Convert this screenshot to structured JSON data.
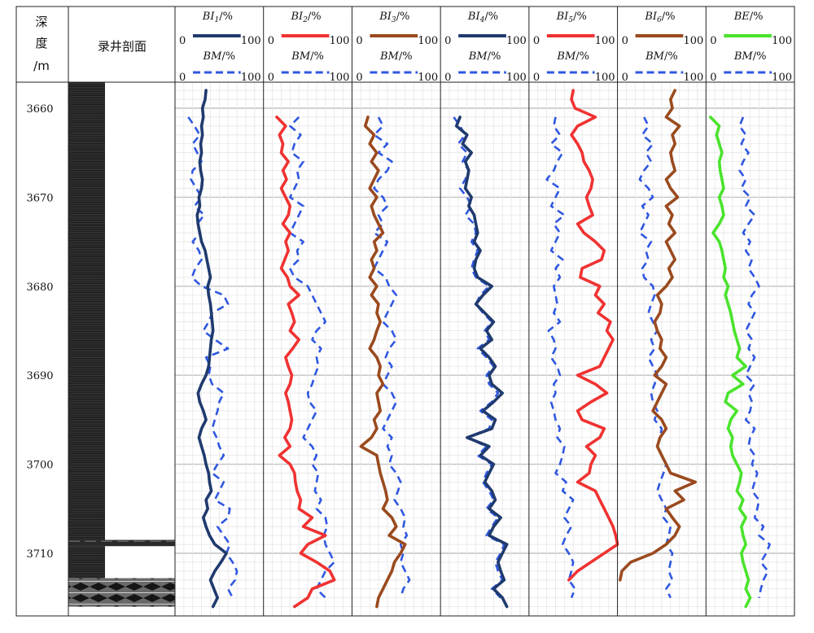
{
  "header": {
    "depth_label": [
      "深",
      "度",
      "/m"
    ],
    "section_label": "录井剖面"
  },
  "chart_data": {
    "type": "line",
    "depth_axis": {
      "unit": "m",
      "range": [
        3657,
        3716
      ],
      "ticks": [
        3660,
        3670,
        3680,
        3690,
        3700,
        3710
      ]
    },
    "lithology": [
      {
        "from": 3657,
        "to": 3708.5,
        "pattern": "dark-mudstone"
      },
      {
        "from": 3708.5,
        "to": 3709.2,
        "pattern": "thin-interbed"
      },
      {
        "from": 3709.2,
        "to": 3712.8,
        "pattern": "white-sandstone"
      },
      {
        "from": 3712.8,
        "to": 3716,
        "pattern": "nodular-limestone"
      }
    ],
    "tracks": [
      {
        "title_main": "BI",
        "title_sub": "1",
        "title_unit": "/%",
        "min_label": "0",
        "max_label": "100",
        "range": [
          0,
          100
        ],
        "color": "#1f3a6e",
        "depth_start": 3657,
        "depth_step": 1,
        "values": [
          32,
          35,
          34,
          31,
          32,
          30,
          31,
          29,
          30,
          28,
          29,
          31,
          30,
          27,
          28,
          25,
          26,
          28,
          30,
          34,
          36,
          38,
          40,
          37,
          38,
          40,
          41,
          42,
          43,
          41,
          40,
          39,
          38,
          35,
          30,
          26,
          28,
          32,
          35,
          30,
          27,
          30,
          33,
          35,
          38,
          39,
          41,
          35,
          37,
          32,
          35,
          39,
          45,
          58,
          52,
          45,
          40,
          44,
          48,
          43
        ],
        "bm_color": "#2f57e0",
        "bm_start": 3661,
        "bm_values": [
          15,
          22,
          28,
          20,
          25,
          30,
          20,
          18,
          24,
          30,
          22,
          33,
          25,
          28,
          20,
          27,
          30,
          23,
          19,
          30,
          55,
          60,
          42,
          38,
          32,
          45,
          60,
          35,
          40,
          38,
          42,
          55,
          50,
          48,
          45,
          42,
          47,
          50,
          55,
          48,
          42,
          55,
          50,
          45,
          62,
          60,
          48,
          55,
          62,
          58,
          65,
          70,
          68,
          60,
          65
        ]
      },
      {
        "title_main": "BI",
        "title_sub": "2",
        "title_unit": "/%",
        "min_label": "0",
        "max_label": "100",
        "range": [
          0,
          100
        ],
        "color": "#f03232",
        "depth_start": 3661,
        "depth_step": 1,
        "values": [
          15,
          25,
          18,
          22,
          20,
          28,
          22,
          26,
          20,
          25,
          30,
          28,
          22,
          30,
          25,
          28,
          24,
          20,
          27,
          30,
          40,
          28,
          32,
          35,
          30,
          40,
          33,
          25,
          28,
          32,
          30,
          25,
          28,
          30,
          32,
          30,
          24,
          30,
          18,
          30,
          35,
          36,
          38,
          42,
          40,
          55,
          45,
          70,
          50,
          42,
          60,
          75,
          80,
          55,
          50,
          35,
          25
        ],
        "bm_color": "#2f57e0",
        "bm_start": 3661,
        "bm_values": [
          40,
          30,
          42,
          35,
          32,
          45,
          38,
          40,
          35,
          30,
          45,
          40,
          35,
          30,
          45,
          38,
          40,
          30,
          35,
          50,
          55,
          60,
          65,
          70,
          60,
          55,
          65,
          60,
          62,
          58,
          55,
          50,
          52,
          60,
          55,
          50,
          45,
          55,
          60,
          55,
          62,
          60,
          58,
          65,
          60,
          70,
          72,
          68,
          70,
          75,
          80,
          70,
          65,
          60,
          70
        ]
      },
      {
        "title_main": "BI",
        "title_sub": "3",
        "title_unit": "/%",
        "min_label": "0",
        "max_label": "100",
        "range": [
          0,
          100
        ],
        "color": "#9a4a1e",
        "depth_start": 3661,
        "depth_step": 1,
        "values": [
          18,
          15,
          25,
          20,
          28,
          22,
          30,
          25,
          20,
          28,
          22,
          25,
          30,
          35,
          25,
          28,
          22,
          25,
          20,
          28,
          22,
          30,
          28,
          32,
          28,
          25,
          20,
          28,
          32,
          30,
          35,
          28,
          30,
          32,
          25,
          28,
          22,
          10,
          28,
          30,
          32,
          35,
          38,
          40,
          35,
          45,
          50,
          42,
          60,
          55,
          48,
          45,
          40,
          35,
          30,
          28,
          25
        ],
        "bm_color": "#2f57e0",
        "bm_start": 3661,
        "bm_values": [
          30,
          35,
          25,
          40,
          30,
          45,
          40,
          30,
          25,
          35,
          40,
          30,
          35,
          25,
          40,
          35,
          30,
          25,
          38,
          42,
          50,
          45,
          40,
          35,
          45,
          50,
          42,
          38,
          45,
          40,
          35,
          45,
          50,
          45,
          40,
          35,
          45,
          40,
          45,
          42,
          50,
          55,
          52,
          48,
          55,
          60,
          58,
          62,
          55,
          58,
          55,
          60,
          65,
          58,
          55
        ]
      },
      {
        "title_main": "BI",
        "title_sub": "4",
        "title_unit": "/%",
        "min_label": "0",
        "max_label": "100",
        "range": [
          0,
          100
        ],
        "color": "#1f3a6e",
        "depth_start": 3661,
        "depth_step": 1,
        "values": [
          22,
          18,
          30,
          25,
          35,
          28,
          32,
          30,
          28,
          35,
          32,
          38,
          40,
          42,
          38,
          45,
          40,
          38,
          42,
          58,
          48,
          40,
          50,
          60,
          52,
          58,
          45,
          55,
          62,
          55,
          58,
          70,
          60,
          48,
          62,
          58,
          30,
          55,
          45,
          60,
          55,
          50,
          58,
          62,
          55,
          68,
          60,
          55,
          75,
          70,
          65,
          68,
          72,
          60,
          70,
          75
        ],
        "bm_color": "#2f57e0",
        "bm_start": 3661,
        "bm_values": [
          15,
          22,
          28,
          20,
          30,
          25,
          32,
          28,
          22,
          30,
          35,
          28,
          38,
          40,
          35,
          42,
          38,
          35,
          40,
          55,
          45,
          40,
          48,
          58,
          50,
          55,
          42,
          52,
          60,
          52,
          55,
          65,
          58,
          45,
          58,
          55,
          30,
          52,
          42,
          58,
          52,
          48,
          55,
          60,
          52,
          65,
          58,
          52,
          72,
          68,
          62,
          65,
          70,
          58,
          68
        ]
      },
      {
        "title_main": "BI",
        "title_sub": "5",
        "title_unit": "/%",
        "min_label": "0",
        "max_label": "100",
        "range": [
          0,
          100
        ],
        "color": "#f03232",
        "depth_start": 3657,
        "depth_step": 1,
        "values": [
          45,
          50,
          48,
          52,
          75,
          55,
          48,
          55,
          60,
          62,
          68,
          72,
          70,
          65,
          68,
          72,
          55,
          62,
          75,
          85,
          82,
          60,
          58,
          80,
          75,
          85,
          78,
          92,
          88,
          95,
          90,
          85,
          80,
          55,
          75,
          88,
          70,
          55,
          60,
          85,
          80,
          65,
          75,
          70,
          68,
          55,
          75,
          80,
          85,
          90,
          95,
          98,
          100,
          85,
          70,
          55,
          45
        ],
        "bm_color": "#2f57e0",
        "bm_start": 3661,
        "bm_values": [
          30,
          28,
          35,
          25,
          38,
          32,
          28,
          20,
          35,
          30,
          25,
          40,
          28,
          35,
          30,
          25,
          38,
          30,
          35,
          28,
          30,
          32,
          28,
          35,
          22,
          28,
          30,
          25,
          32,
          35,
          28,
          30,
          25,
          28,
          30,
          35,
          32,
          40,
          38,
          35,
          30,
          42,
          38,
          50,
          45,
          40,
          48,
          42,
          38,
          45,
          50,
          48,
          45,
          52,
          48
        ]
      },
      {
        "title_main": "BI",
        "title_sub": "6",
        "title_unit": "/%",
        "min_label": "0",
        "max_label": "100",
        "range": [
          0,
          100
        ],
        "color": "#9a4a1e",
        "depth_start": 3657,
        "depth_step": 1,
        "values": [
          62,
          65,
          60,
          62,
          55,
          70,
          62,
          65,
          60,
          62,
          65,
          55,
          60,
          68,
          55,
          62,
          58,
          65,
          55,
          60,
          65,
          58,
          62,
          55,
          45,
          50,
          48,
          42,
          45,
          50,
          48,
          55,
          50,
          42,
          55,
          50,
          45,
          40,
          50,
          55,
          48,
          45,
          50,
          55,
          60,
          88,
          65,
          75,
          55,
          62,
          70,
          65,
          55,
          40,
          15,
          5,
          3
        ],
        "bm_color": "#2f57e0",
        "bm_start": 3661,
        "bm_values": [
          30,
          35,
          28,
          40,
          32,
          38,
          30,
          25,
          35,
          40,
          28,
          35,
          30,
          25,
          38,
          32,
          35,
          28,
          30,
          40,
          42,
          38,
          35,
          40,
          45,
          38,
          42,
          35,
          40,
          45,
          42,
          38,
          40,
          45,
          42,
          50,
          48,
          45,
          50,
          55,
          52,
          48,
          45,
          50,
          55,
          52,
          60,
          58,
          55,
          62,
          60,
          58,
          62,
          55,
          60
        ]
      },
      {
        "title_main": "BE",
        "title_sub": "",
        "title_unit": "/%",
        "min_label": "0",
        "max_label": "100",
        "range": [
          0,
          100
        ],
        "color": "#4ae32d",
        "depth_start": 3661,
        "depth_step": 1,
        "values": [
          5,
          15,
          12,
          15,
          18,
          15,
          16,
          18,
          20,
          15,
          18,
          20,
          15,
          8,
          15,
          18,
          20,
          22,
          20,
          25,
          22,
          25,
          28,
          30,
          32,
          35,
          38,
          35,
          45,
          30,
          42,
          25,
          22,
          35,
          28,
          25,
          30,
          28,
          30,
          35,
          40,
          38,
          35,
          42,
          38,
          45,
          40,
          42,
          45,
          40,
          42,
          45,
          48,
          45,
          50,
          45,
          48
        ],
        "bm_color": "#2f57e0",
        "bm_start": 3661,
        "bm_values": [
          42,
          38,
          45,
          40,
          48,
          42,
          38,
          45,
          40,
          50,
          45,
          55,
          48,
          42,
          50,
          45,
          52,
          48,
          55,
          60,
          52,
          48,
          55,
          50,
          45,
          52,
          48,
          55,
          50,
          45,
          55,
          48,
          52,
          50,
          45,
          55,
          50,
          48,
          55,
          52,
          58,
          55,
          52,
          60,
          58,
          55,
          65,
          60,
          72,
          68,
          62,
          70,
          65,
          62,
          60
        ]
      }
    ],
    "secondary": {
      "title": "BM/%",
      "min_label": "0",
      "max_label": "100",
      "range": [
        0,
        100
      ],
      "color": "#2f57e0",
      "dash": true
    },
    "grid": true
  }
}
